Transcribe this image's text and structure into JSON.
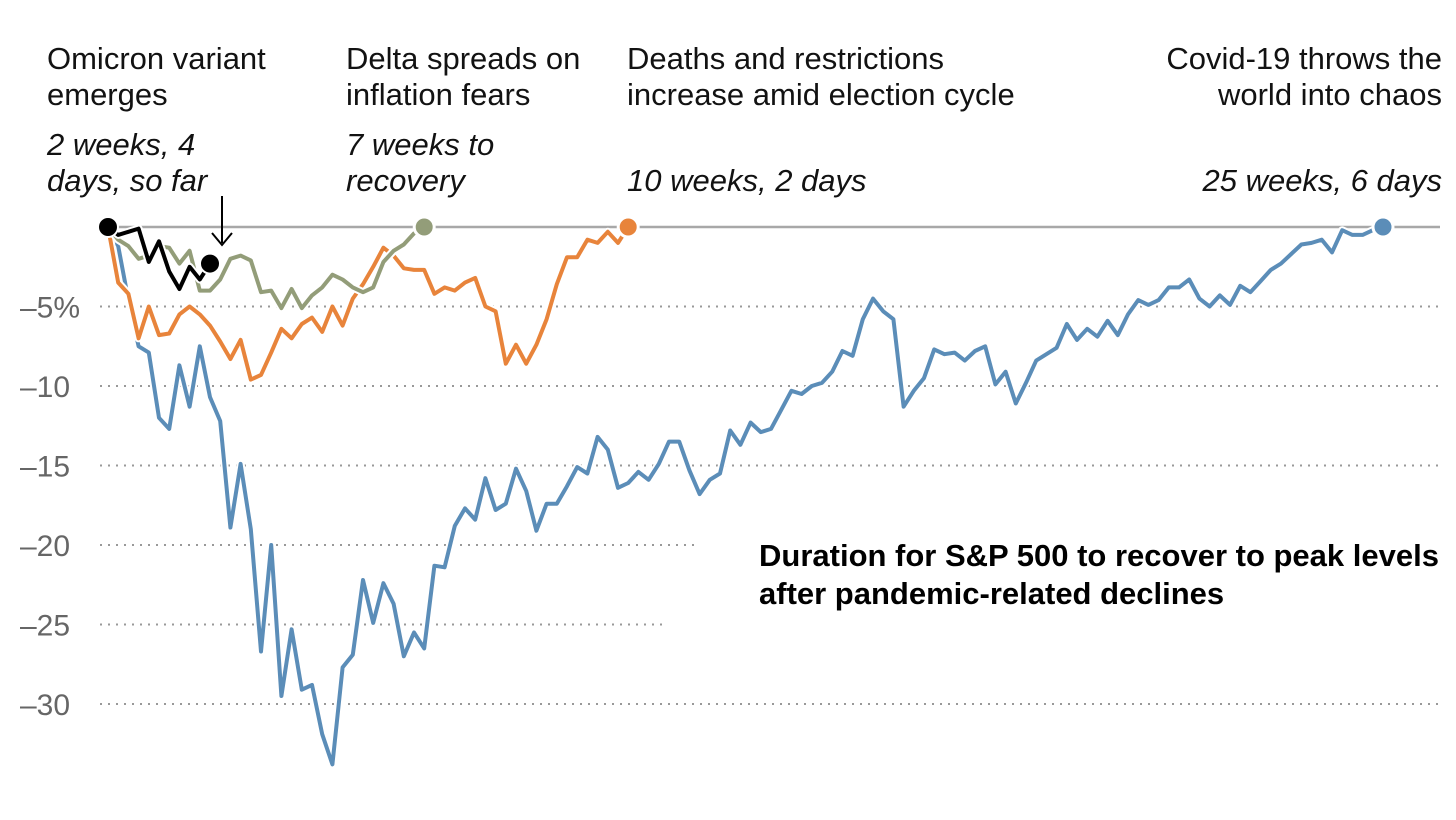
{
  "chart_data": {
    "type": "line",
    "title": "Duration for S&P 500 to recover to peak levels after pandemic-related declines",
    "xlabel": "",
    "ylabel": "",
    "ylim": [
      -34,
      0
    ],
    "xlim": [
      0,
      130
    ],
    "y_ticks": [
      {
        "value": -5,
        "label": "–5%"
      },
      {
        "value": -10,
        "label": "–10"
      },
      {
        "value": -15,
        "label": "–15"
      },
      {
        "value": -20,
        "label": "–20"
      },
      {
        "value": -25,
        "label": "–25"
      },
      {
        "value": -30,
        "label": "–30"
      }
    ],
    "grid": "dotted horizontal",
    "series": [
      {
        "key": "covid",
        "color": "#5b8db8",
        "heading": "Covid-19 throws  the world into chaos",
        "duration": "25 weeks, 6 days",
        "values": [
          0,
          -1.2,
          -4.6,
          -7.5,
          -7.9,
          -12,
          -12.7,
          -8.7,
          -11.3,
          -7.5,
          -10.7,
          -12.2,
          -18.9,
          -14.9,
          -19.0,
          -26.7,
          -20.0,
          -29.5,
          -25.3,
          -29.1,
          -28.8,
          -31.9,
          -33.8,
          -27.7,
          -26.9,
          -22.2,
          -24.9,
          -22.4,
          -23.7,
          -27.0,
          -25.5,
          -26.5,
          -21.3,
          -21.4,
          -18.8,
          -17.7,
          -18.4,
          -15.8,
          -17.8,
          -17.4,
          -15.2,
          -16.6,
          -19.1,
          -17.4,
          -17.4,
          -16.3,
          -15.1,
          -15.5,
          -13.2,
          -14.0,
          -16.4,
          -16.1,
          -15.4,
          -15.9,
          -14.9,
          -13.5,
          -13.5,
          -15.3,
          -16.8,
          -15.9,
          -15.5,
          -12.8,
          -13.7,
          -12.3,
          -12.9,
          -12.7,
          -11.5,
          -10.3,
          -10.5,
          -10.0,
          -9.8,
          -9.1,
          -7.8,
          -8.1,
          -5.8,
          -4.5,
          -5.3,
          -5.8,
          -11.3,
          -10.3,
          -9.5,
          -7.7,
          -8.0,
          -7.9,
          -8.4,
          -7.8,
          -7.5,
          -9.9,
          -9.1,
          -11.1,
          -9.8,
          -8.4,
          -8.0,
          -7.6,
          -6.1,
          -7.1,
          -6.4,
          -6.9,
          -5.9,
          -6.8,
          -5.5,
          -4.6,
          -4.9,
          -4.6,
          -3.8,
          -3.8,
          -3.3,
          -4.5,
          -5.0,
          -4.3,
          -4.9,
          -3.7,
          -4.1,
          -3.4,
          -2.7,
          -2.3,
          -1.7,
          -1.1,
          -1.0,
          -0.8,
          -1.6,
          -0.2,
          -0.5,
          -0.5,
          -0.2,
          0
        ]
      },
      {
        "key": "election",
        "color": "#e8843b",
        "heading": "Deaths and restrictions increase amid election cycle",
        "duration": "10 weeks, 2 days",
        "values": [
          0,
          -3.5,
          -4.2,
          -7.0,
          -5.0,
          -6.8,
          -6.7,
          -5.5,
          -5.0,
          -5.5,
          -6.2,
          -7.2,
          -8.3,
          -7.1,
          -9.6,
          -9.3,
          -7.9,
          -6.4,
          -7.0,
          -6.1,
          -5.7,
          -6.6,
          -5.0,
          -6.2,
          -4.5,
          -3.6,
          -2.5,
          -1.3,
          -1.8,
          -2.6,
          -2.7,
          -2.7,
          -4.2,
          -3.8,
          -4.0,
          -3.5,
          -3.2,
          -5.0,
          -5.3,
          -8.6,
          -7.4,
          -8.6,
          -7.4,
          -5.8,
          -3.6,
          -1.9,
          -1.9,
          -0.8,
          -1.0,
          -0.3,
          -1.0,
          0
        ]
      },
      {
        "key": "delta",
        "color": "#939d79",
        "heading": "Delta spreads on inflation fears",
        "duration": "7 weeks to recovery",
        "values": [
          0,
          -0.8,
          -1.2,
          -2.0,
          -1.8,
          -1.2,
          -1.3,
          -2.3,
          -1.5,
          -4.0,
          -4.0,
          -3.3,
          -2.0,
          -1.8,
          -2.1,
          -4.1,
          -4.0,
          -5.1,
          -3.9,
          -5.1,
          -4.3,
          -3.8,
          -3.0,
          -3.3,
          -3.8,
          -4.1,
          -3.8,
          -2.2,
          -1.5,
          -1.1,
          -0.4,
          0
        ]
      },
      {
        "key": "omicron",
        "color": "#000000",
        "heading": "Omicron variant emerges",
        "duration": "2 weeks, 4 days, so far",
        "values": [
          0,
          -0.5,
          -0.3,
          -0.1,
          -2.2,
          -0.9,
          -2.8,
          -3.9,
          -2.5,
          -3.3,
          -2.3
        ]
      }
    ]
  }
}
